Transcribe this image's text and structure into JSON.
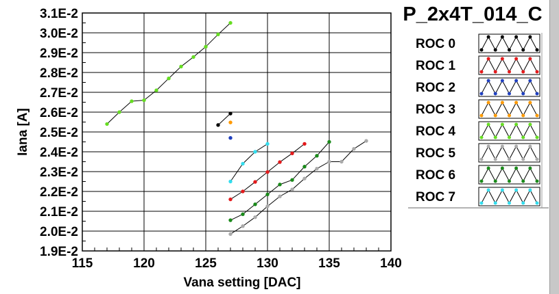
{
  "chart_data": {
    "type": "scatter",
    "title": "P_2x4T_014_C",
    "xlabel": "Vana setting [DAC]",
    "ylabel": "Iana [A]",
    "xlim": [
      115,
      140
    ],
    "ylim": [
      0.019,
      0.031
    ],
    "x_ticks": [
      115,
      120,
      125,
      130,
      135,
      140
    ],
    "x_tick_labels": [
      "115",
      "120",
      "125",
      "130",
      "135",
      "140"
    ],
    "y_ticks": [
      0.019,
      0.02,
      0.021,
      0.022,
      0.023,
      0.024,
      0.025,
      0.026,
      0.027,
      0.028,
      0.029,
      0.03,
      0.031
    ],
    "y_tick_labels": [
      "1.9E-2",
      "2.0E-2",
      "2.1E-2",
      "2.2E-2",
      "2.3E-2",
      "2.4E-2",
      "2.5E-2",
      "2.6E-2",
      "2.7E-2",
      "2.8E-2",
      "2.9E-2",
      "3.0E-2",
      "3.1E-2"
    ],
    "grid": true,
    "legend_position": "right",
    "series": [
      {
        "name": "ROC 0",
        "color": "#000000",
        "points": [
          [
            126,
            0.02535
          ],
          [
            127,
            0.02593
          ]
        ]
      },
      {
        "name": "ROC 1",
        "color": "#e41a1c",
        "points": [
          [
            127,
            0.0216
          ],
          [
            128,
            0.022
          ],
          [
            129,
            0.02248
          ],
          [
            130,
            0.02298
          ],
          [
            131,
            0.02348
          ],
          [
            132,
            0.02392
          ],
          [
            133,
            0.0244
          ]
        ]
      },
      {
        "name": "ROC 2",
        "color": "#1f3fbf",
        "points": [
          [
            127,
            0.0247
          ]
        ]
      },
      {
        "name": "ROC 3",
        "color": "#ff9900",
        "points": [
          [
            127,
            0.02548
          ]
        ]
      },
      {
        "name": "ROC 4",
        "color": "#66dd22",
        "points": [
          [
            117,
            0.0254
          ],
          [
            118,
            0.026
          ],
          [
            119,
            0.02655
          ],
          [
            120,
            0.0266
          ],
          [
            121,
            0.0271
          ],
          [
            122,
            0.0277
          ],
          [
            123,
            0.0283
          ],
          [
            124,
            0.02878
          ],
          [
            125,
            0.0293
          ],
          [
            126,
            0.02992
          ],
          [
            127,
            0.0305
          ]
        ]
      },
      {
        "name": "ROC 5",
        "color": "#aaaaaa",
        "points": [
          [
            127,
            0.01985
          ],
          [
            128,
            0.02025
          ],
          [
            129,
            0.0207
          ],
          [
            130,
            0.02125
          ],
          [
            131,
            0.02175
          ],
          [
            132,
            0.0221
          ],
          [
            133,
            0.02265
          ],
          [
            134,
            0.02315
          ],
          [
            135,
            0.0235
          ],
          [
            136,
            0.0235
          ],
          [
            137,
            0.02415
          ],
          [
            138,
            0.02455
          ]
        ]
      },
      {
        "name": "ROC 6",
        "color": "#1a8a1a",
        "points": [
          [
            127,
            0.02055
          ],
          [
            128,
            0.02085
          ],
          [
            129,
            0.02135
          ],
          [
            130,
            0.02185
          ],
          [
            131,
            0.02235
          ],
          [
            132,
            0.02258
          ],
          [
            133,
            0.02325
          ],
          [
            134,
            0.0238
          ],
          [
            135,
            0.0245
          ]
        ]
      },
      {
        "name": "ROC 7",
        "color": "#33ddee",
        "points": [
          [
            127,
            0.0225
          ],
          [
            128,
            0.0234
          ],
          [
            129,
            0.024
          ],
          [
            130,
            0.0244
          ]
        ]
      }
    ]
  }
}
